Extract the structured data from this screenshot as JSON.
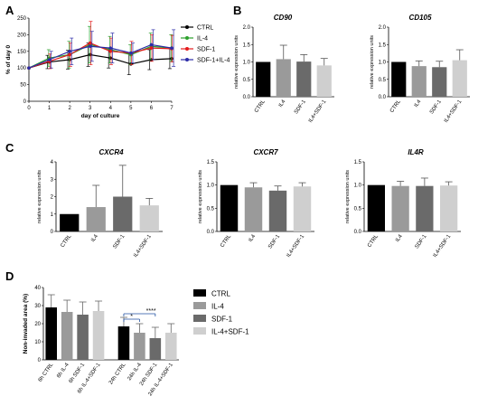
{
  "panels": {
    "A": "A",
    "B": "B",
    "C": "C",
    "D": "D"
  },
  "colors": {
    "CTRL": "#000000",
    "IL4": "#9a9a9a",
    "SDF1": "#6a6a6a",
    "IL4SDF1": "#cfcfcf",
    "lineCTRL": "#000000",
    "lineIL4": "#2ca02c",
    "lineSDF1": "#e41a1c",
    "lineSDF1IL4": "#2c2ca8",
    "sig": "#1f4fa0"
  },
  "chart_data": [
    {
      "panel": "A",
      "type": "line",
      "title": "",
      "xlabel": "day of culture",
      "ylabel": "% of day 0",
      "x": [
        0,
        1,
        2,
        3,
        4,
        5,
        6,
        7
      ],
      "xticks": [
        "0",
        "1",
        "2",
        "3",
        "4",
        "5",
        "6",
        "7"
      ],
      "yticks": [
        "0",
        "50",
        "100",
        "150",
        "200",
        "250"
      ],
      "ylim": [
        0,
        250
      ],
      "xlim": [
        0,
        7
      ],
      "legend": "right",
      "series": [
        {
          "name": "CTRL",
          "color_key": "lineCTRL",
          "values": [
            100,
            118,
            125,
            140,
            130,
            112,
            125,
            128
          ],
          "err": [
            0,
            20,
            28,
            35,
            30,
            32,
            30,
            30
          ]
        },
        {
          "name": "IL-4",
          "color_key": "lineIL4",
          "values": [
            100,
            130,
            140,
            170,
            155,
            140,
            165,
            160
          ],
          "err": [
            0,
            25,
            40,
            55,
            40,
            30,
            40,
            40
          ]
        },
        {
          "name": "SDF-1",
          "color_key": "lineSDF1",
          "values": [
            100,
            120,
            140,
            175,
            150,
            145,
            160,
            158
          ],
          "err": [
            0,
            22,
            35,
            65,
            40,
            35,
            40,
            40
          ]
        },
        {
          "name": "SDF-1+IL-4",
          "color_key": "lineSDF1IL4",
          "values": [
            100,
            125,
            150,
            165,
            160,
            145,
            170,
            160
          ],
          "err": [
            0,
            25,
            40,
            45,
            45,
            30,
            45,
            55
          ]
        }
      ]
    },
    {
      "panel": "B1",
      "type": "bar",
      "title": "CD90",
      "ylabel": "relative expression units",
      "categories": [
        "CTRL",
        "IL4",
        "SDF-1",
        "IL4+SDF-1"
      ],
      "values": [
        1.0,
        1.08,
        1.01,
        0.9
      ],
      "err": [
        0,
        0.4,
        0.2,
        0.2
      ],
      "yticks": [
        "0.0",
        "0.5",
        "1.0",
        "1.5",
        "2.0"
      ],
      "ylim": [
        0,
        2.0
      ]
    },
    {
      "panel": "B2",
      "type": "bar",
      "title": "CD105",
      "ylabel": "relative expression units",
      "categories": [
        "CTRL",
        "IL4",
        "SDF-1",
        "IL4+SDF-1"
      ],
      "values": [
        1.0,
        0.88,
        0.85,
        1.05
      ],
      "err": [
        0,
        0.15,
        0.17,
        0.3
      ],
      "yticks": [
        "0.0",
        "0.5",
        "1.0",
        "1.5",
        "2.0"
      ],
      "ylim": [
        0,
        2.0
      ]
    },
    {
      "panel": "C1",
      "type": "bar",
      "title": "CXCR4",
      "ylabel": "relative expression units",
      "categories": [
        "CTRL",
        "IL4",
        "SDF-1",
        "IL4+SDF-1"
      ],
      "values": [
        1.0,
        1.4,
        2.0,
        1.5
      ],
      "err": [
        0,
        1.25,
        1.8,
        0.4
      ],
      "yticks": [
        "0",
        "1",
        "2",
        "3",
        "4"
      ],
      "ylim": [
        0,
        4
      ]
    },
    {
      "panel": "C2",
      "type": "bar",
      "title": "CXCR7",
      "ylabel": "relative expression units",
      "categories": [
        "CTRL",
        "IL4",
        "SDF-1",
        "IL4+SDF-1"
      ],
      "values": [
        1.0,
        0.95,
        0.88,
        0.97
      ],
      "err": [
        0,
        0.1,
        0.1,
        0.08
      ],
      "yticks": [
        "0.0",
        "0.5",
        "1.0",
        "1.5"
      ],
      "ylim": [
        0,
        1.5
      ]
    },
    {
      "panel": "C3",
      "type": "bar",
      "title": "IL4R",
      "ylabel": "relative expression units",
      "categories": [
        "CTRL",
        "IL4",
        "SDF-1",
        "IL4+SDF-1"
      ],
      "values": [
        1.0,
        0.98,
        0.98,
        0.99
      ],
      "err": [
        0,
        0.1,
        0.17,
        0.08
      ],
      "yticks": [
        "0.0",
        "0.5",
        "1.0",
        "1.5"
      ],
      "ylim": [
        0,
        1.5
      ]
    },
    {
      "panel": "D",
      "type": "bar",
      "title": "",
      "ylabel": "Non-invaded area (%)",
      "categories": [
        "6h CTRL",
        "6h IL-4",
        "6h SDF-1",
        "6h IL-4+SDF-1",
        "24h CTRL",
        "24h IL-4",
        "24h SDF-1",
        "24h IL-4+SDF-1"
      ],
      "values": [
        29,
        26.5,
        25,
        27,
        18.5,
        15,
        12,
        15
      ],
      "err": [
        7,
        6.5,
        7,
        5.5,
        5,
        5,
        6,
        5
      ],
      "yticks": [
        "0",
        "10",
        "20",
        "30",
        "40"
      ],
      "ylim": [
        0,
        40
      ],
      "legend": "right",
      "legend_entries": [
        "CTRL",
        "IL-4",
        "SDF-1",
        "IL-4+SDF-1"
      ],
      "annotations": [
        "*",
        "****"
      ]
    }
  ]
}
